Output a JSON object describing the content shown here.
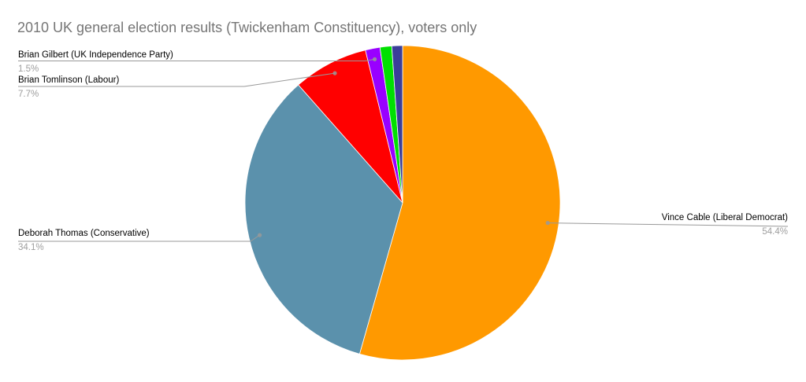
{
  "chart_data": {
    "type": "pie",
    "title": "2010 UK general election results (Twickenham Constituency), voters only",
    "direction": "clockwise",
    "start_angle_deg": 0,
    "legend": "outside-callout-labels",
    "background_color": "#FFFFFF",
    "title_color": "#757575",
    "label_name_color": "#000000",
    "label_pct_color": "#9E9E9E",
    "leader_line_color": "#999999",
    "slices": [
      {
        "label": "Vince Cable (Liberal Democrat)",
        "value": 54.4,
        "pct_label": "54.4%",
        "color": "#FF9900",
        "callout": true
      },
      {
        "label": "Deborah Thomas (Conservative)",
        "value": 34.1,
        "pct_label": "34.1%",
        "color": "#5B91AC",
        "callout": true
      },
      {
        "label": "Brian Tomlinson (Labour)",
        "value": 7.7,
        "pct_label": "7.7%",
        "color": "#FF0000",
        "callout": true
      },
      {
        "label": "Brian Gilbert (UK Independence Party)",
        "value": 1.5,
        "pct_label": "1.5%",
        "color": "#9900FF",
        "callout": true
      },
      {
        "label": "",
        "value": 1.2,
        "pct_label": "",
        "color": "#00E000",
        "callout": false
      },
      {
        "label": "",
        "value": 1.1,
        "pct_label": "",
        "color": "#3B3E99",
        "callout": false
      }
    ]
  }
}
